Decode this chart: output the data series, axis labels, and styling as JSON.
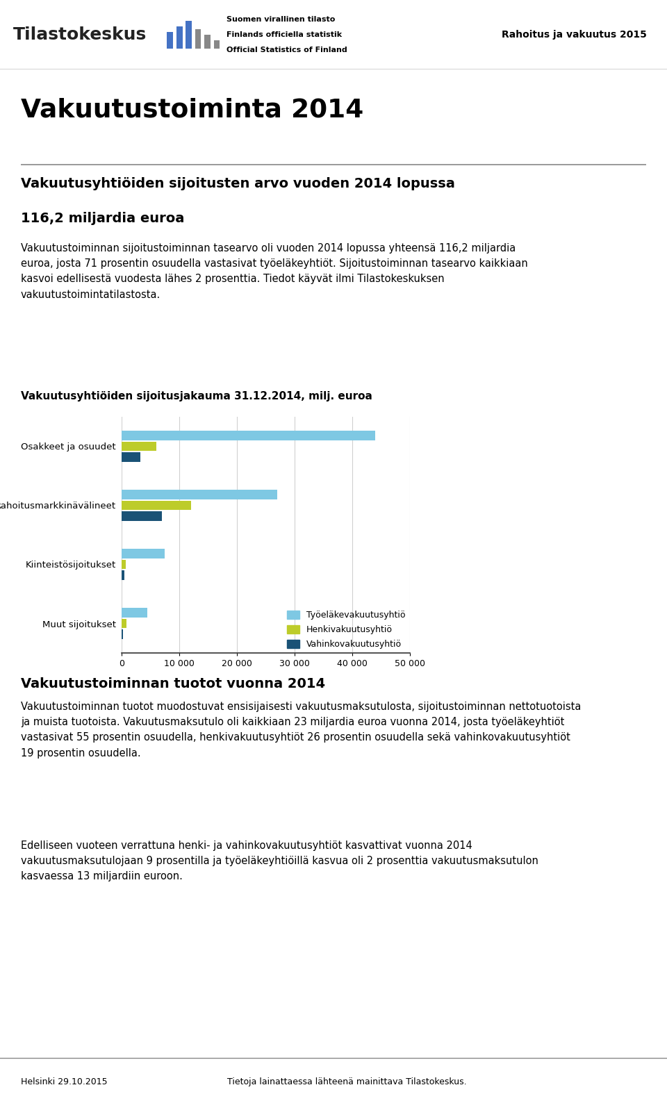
{
  "header_right": "Rahoitus ja vakuutus 2015",
  "header_official1": "Suomen virallinen tilasto",
  "header_official2": "Finlands officiella statistik",
  "header_official3": "Official Statistics of Finland",
  "main_title": "Vakuutustoiminta 2014",
  "section_title_line1": "Vakuutusyhtiöiden sijoitusten arvo vuoden 2014 lopussa",
  "section_title_line2": "116,2 miljardia euroa",
  "paragraph1": "Vakuutustoiminnan sijoitustoiminnan tasearvo oli vuoden 2014 lopussa yhteensä 116,2 miljardia\neuroa, josta 71 prosentin osuudella vastasivat työeläkeyhtiöt. Sijoitustoiminnan tasearvo kaikkiaan\nkasvoi edellisestä vuodesta lähes 2 prosenttia. Tiedot käyvät ilmi Tilastokeskuksen\nvakuutustoimintatilastosta.",
  "chart_title": "Vakuutusyhtiöiden sijoitusjakauma 31.12.2014, milj. euroa",
  "categories": [
    "Osakkeet ja osuudet",
    "Rahoitusmarkkinävälineet",
    "Kiinteistösijoitukset",
    "Muut sijoitukset"
  ],
  "series_names": [
    "Työeläkevakuutusyhtiö",
    "Henkivakuutusyhtiö",
    "Vahinkovakuutusyhtiö"
  ],
  "series_values": [
    [
      44000,
      27000,
      7500,
      4500
    ],
    [
      6000,
      12000,
      700,
      800
    ],
    [
      3200,
      7000,
      500,
      300
    ]
  ],
  "series_colors": [
    "#7EC8E3",
    "#BDCC2A",
    "#1A5276"
  ],
  "xlim": [
    0,
    50000
  ],
  "xticks": [
    0,
    10000,
    20000,
    30000,
    40000,
    50000
  ],
  "xtick_labels": [
    "0",
    "10 000",
    "20 000",
    "30 000",
    "40 000",
    "50 000"
  ],
  "section_title2": "Vakuutustoiminnan tuotot vuonna 2014",
  "paragraph2": "Vakuutustoiminnan tuotot muodostuvat ensisijaisesti vakuutusmaksutulosta, sijoitustoiminnan nettotuotoista\nja muista tuotoista. Vakuutusmaksutulo oli kaikkiaan 23 miljardia euroa vuonna 2014, josta työeläkeyhtiöt\nvastasivat 55 prosentin osuudella, henkivakuutusyhtiöt 26 prosentin osuudella sekä vahinkovakuutusyhtiöt\n19 prosentin osuudella.",
  "paragraph3": "Edelliseen vuoteen verrattuna henki- ja vahinkovakuutusyhtiöt kasvattivat vuonna 2014\nvakuutusmaksutulojaan 9 prosentilla ja työeläkeyhtiöillä kasvua oli 2 prosenttia vakuutusmaksutulon\nkasvaessa 13 miljardiin euroon.",
  "footer_left": "Helsinki 29.10.2015",
  "footer_right": "Tietoja lainattaessa lähteenä mainittava Tilastokeskus.",
  "background_color": "#ffffff",
  "text_color": "#000000",
  "grid_color": "#d0d0d0",
  "spine_color": "#555555",
  "header_line_color": "#cccccc",
  "tilasto_blue": "#4472C4",
  "tilasto_gray": "#808080"
}
